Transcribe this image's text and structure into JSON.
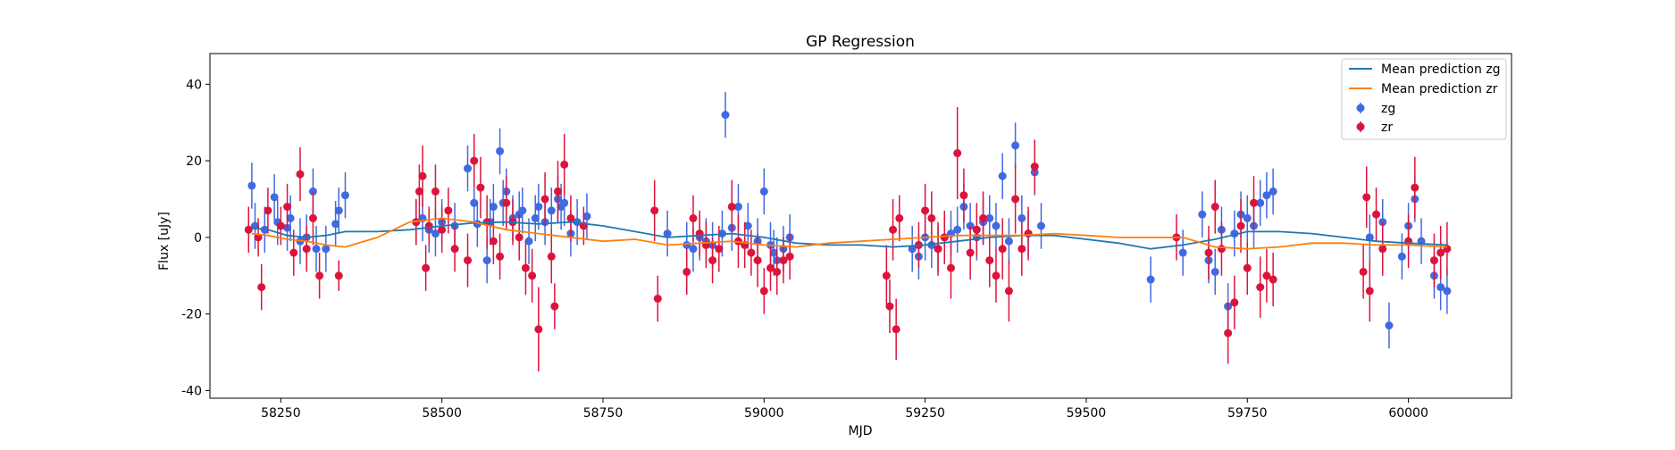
{
  "chart_data": {
    "type": "scatter",
    "title": "GP Regression",
    "xlabel": "MJD",
    "ylabel": "Flux [uJy]",
    "xlim": [
      58140,
      60160
    ],
    "ylim": [
      -42,
      48
    ],
    "x_ticks": [
      58250,
      58500,
      58750,
      59000,
      59250,
      59500,
      59750,
      60000
    ],
    "y_ticks": [
      -40,
      -20,
      0,
      20,
      40
    ],
    "grid": false,
    "legend_position": "upper right",
    "legend": [
      "Mean prediction zg",
      "Mean prediction zr",
      "zg",
      "zr"
    ],
    "lines": [
      {
        "name": "Mean prediction zg",
        "color": "#1f77b4",
        "x": [
          58205,
          58230,
          58260,
          58290,
          58320,
          58350,
          58400,
          58450,
          58500,
          58550,
          58600,
          58650,
          58700,
          58750,
          58800,
          58850,
          58900,
          58950,
          59000,
          59050,
          59100,
          59150,
          59200,
          59250,
          59300,
          59350,
          59400,
          59450,
          59500,
          59550,
          59600,
          59650,
          59700,
          59750,
          59800,
          59850,
          59900,
          59950,
          60000,
          60060
        ],
        "y": [
          2.5,
          2,
          0.5,
          0,
          0.5,
          1.5,
          1.5,
          2,
          3,
          3.8,
          4,
          3.5,
          4,
          3,
          1.5,
          0,
          0.5,
          1,
          0,
          -1.5,
          -2,
          -2,
          -2.5,
          -2,
          -1,
          0,
          0.5,
          0.5,
          -0.5,
          -1.5,
          -3,
          -2,
          -0.5,
          1.5,
          1.5,
          1,
          0,
          -1,
          -1.5,
          -2
        ]
      },
      {
        "name": "Mean prediction zr",
        "color": "#ff7f0e",
        "x": [
          58205,
          58230,
          58260,
          58290,
          58320,
          58350,
          58400,
          58450,
          58500,
          58550,
          58600,
          58650,
          58700,
          58750,
          58800,
          58850,
          58900,
          58950,
          59000,
          59050,
          59100,
          59150,
          59200,
          59250,
          59300,
          59350,
          59400,
          59450,
          59500,
          59550,
          59600,
          59650,
          59700,
          59750,
          59800,
          59850,
          59900,
          59950,
          60000,
          60060
        ],
        "y": [
          1,
          0.5,
          -0.5,
          -1,
          -2,
          -2.5,
          0,
          4,
          5,
          4,
          2,
          1,
          0,
          -1,
          -0.5,
          -2,
          -1.5,
          -1,
          -2,
          -2.5,
          -1.5,
          -1,
          -0.5,
          0,
          0.5,
          0.5,
          0.5,
          1,
          0.5,
          0,
          0,
          0,
          -2.5,
          -3,
          -2.5,
          -1.5,
          -1.5,
          -2,
          -2,
          -2.5
        ]
      }
    ],
    "series": [
      {
        "name": "zg",
        "color": "#4169e1",
        "x": [
          58205,
          58210,
          58225,
          58240,
          58245,
          58260,
          58265,
          58280,
          58290,
          58300,
          58305,
          58320,
          58335,
          58340,
          58350,
          58460,
          58470,
          58480,
          58490,
          58500,
          58520,
          58540,
          58550,
          58555,
          58570,
          58575,
          58580,
          58590,
          58595,
          58600,
          58610,
          58620,
          58625,
          58635,
          58645,
          58650,
          58660,
          58670,
          58680,
          58685,
          58690,
          58700,
          58710,
          58725,
          58850,
          58880,
          58890,
          58900,
          58910,
          58920,
          58935,
          58940,
          58950,
          58960,
          58975,
          58990,
          59000,
          59010,
          59015,
          59020,
          59030,
          59040,
          59230,
          59240,
          59250,
          59260,
          59270,
          59280,
          59290,
          59300,
          59310,
          59320,
          59330,
          59340,
          59350,
          59360,
          59370,
          59380,
          59390,
          59400,
          59410,
          59420,
          59430,
          59600,
          59650,
          59680,
          59690,
          59700,
          59710,
          59720,
          59730,
          59740,
          59750,
          59760,
          59770,
          59780,
          59790,
          59940,
          59960,
          59970,
          59990,
          60000,
          60010,
          60020,
          60040,
          60050,
          60060
        ],
        "y": [
          13.5,
          3,
          2,
          10.5,
          4,
          2.5,
          5,
          -1,
          0,
          12,
          -3,
          -3,
          3.5,
          7,
          11,
          4,
          5,
          2,
          1,
          4,
          3,
          18,
          9,
          3.5,
          -6,
          4,
          8,
          22.5,
          9,
          12,
          5,
          6,
          7,
          -1,
          5,
          8,
          4,
          7,
          10,
          8,
          9,
          1,
          4,
          5.5,
          1,
          -2,
          -3,
          0,
          -1,
          -2,
          1,
          32,
          2.5,
          8,
          3,
          -1,
          12,
          -2,
          -4,
          -6,
          -3,
          0,
          -3,
          -5,
          0,
          -2,
          -3,
          0,
          1,
          2,
          8,
          3,
          0,
          4,
          5,
          3,
          16,
          -1,
          24,
          5,
          1,
          17,
          3,
          -11,
          -4,
          6,
          -6,
          -9,
          2,
          -18,
          1,
          6,
          5,
          3,
          9,
          11,
          12,
          0,
          4,
          -23,
          -5,
          3,
          10,
          -1,
          -10,
          -13,
          -14
        ]
      },
      {
        "name": "zr",
        "color": "#dc143c",
        "x": [
          58200,
          58215,
          58220,
          58230,
          58250,
          58260,
          58270,
          58280,
          58290,
          58300,
          58310,
          58340,
          58460,
          58465,
          58470,
          58475,
          58480,
          58490,
          58500,
          58510,
          58520,
          58540,
          58550,
          58560,
          58570,
          58580,
          58590,
          58600,
          58610,
          58620,
          58630,
          58640,
          58650,
          58660,
          58670,
          58675,
          58680,
          58690,
          58700,
          58720,
          58830,
          58835,
          58880,
          58890,
          58900,
          58910,
          58920,
          58930,
          58950,
          58960,
          58970,
          58980,
          58990,
          59000,
          59010,
          59020,
          59030,
          59040,
          59190,
          59195,
          59200,
          59205,
          59210,
          59240,
          59250,
          59260,
          59270,
          59280,
          59290,
          59300,
          59310,
          59320,
          59330,
          59340,
          59350,
          59360,
          59370,
          59380,
          59390,
          59400,
          59410,
          59420,
          59640,
          59690,
          59700,
          59710,
          59720,
          59730,
          59740,
          59750,
          59760,
          59770,
          59780,
          59790,
          59930,
          59935,
          59940,
          59950,
          59960,
          60000,
          60010,
          60040,
          60050,
          60060
        ],
        "y": [
          2,
          0,
          -13,
          7,
          3,
          8,
          -4,
          16.5,
          -3,
          5,
          -10,
          -10,
          4,
          12,
          16,
          -8,
          3,
          12,
          2,
          7,
          -3,
          -6,
          20,
          13,
          4,
          -1,
          -5,
          9,
          4,
          0,
          -8,
          -10,
          -24,
          10,
          -5,
          -18,
          12,
          19,
          5,
          3,
          7,
          -16,
          -9,
          5,
          1,
          -2,
          -6,
          -3,
          8,
          -1,
          -2,
          -4,
          -6,
          -14,
          -8,
          -9,
          -6,
          -5,
          -10,
          -18,
          2,
          -24,
          5,
          -2,
          7,
          5,
          -3,
          0,
          -8,
          22,
          11,
          -4,
          2,
          5,
          -6,
          -10,
          -3,
          -14,
          10,
          -3,
          1,
          18.5,
          0,
          -4,
          8,
          -3,
          -25,
          -17,
          3,
          -8,
          9,
          -13,
          -10,
          -11,
          -9,
          10.5,
          -14,
          6,
          -3,
          -1,
          13,
          -6,
          -4,
          -3
        ],
        "yerr": [
          6,
          5,
          6,
          6,
          5,
          6,
          6,
          7,
          6,
          7,
          6,
          4,
          6,
          7,
          8,
          6,
          5,
          7,
          6,
          6,
          6,
          7,
          7,
          8,
          7,
          6,
          6,
          7,
          6,
          6,
          7,
          7,
          11,
          7,
          7,
          6,
          8,
          8,
          6,
          5,
          8,
          6,
          6,
          6,
          6,
          6,
          6,
          6,
          7,
          7,
          6,
          6,
          7,
          6,
          6,
          6,
          6,
          6,
          8,
          7,
          8,
          8,
          6,
          6,
          7,
          7,
          7,
          7,
          8,
          12,
          7,
          7,
          7,
          7,
          7,
          7,
          8,
          8,
          9,
          7,
          7,
          7,
          6,
          7,
          7,
          7,
          8,
          7,
          7,
          7,
          7,
          8,
          7,
          7,
          7,
          8,
          8,
          7,
          7,
          7,
          8,
          7,
          7,
          7
        ]
      }
    ]
  }
}
